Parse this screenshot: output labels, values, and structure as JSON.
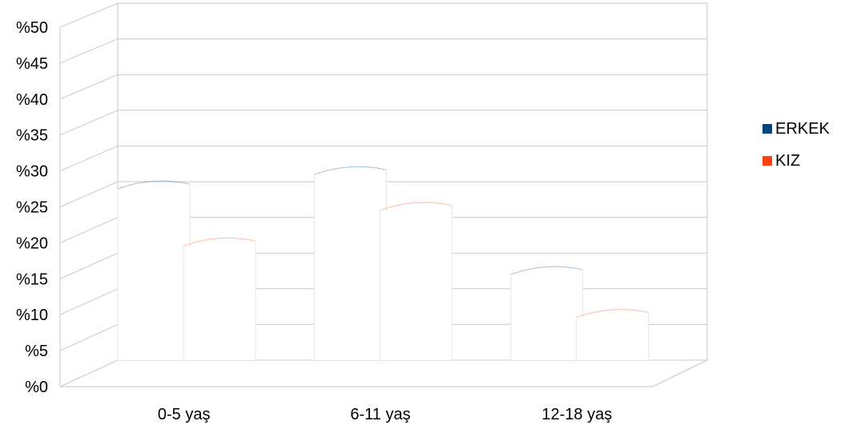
{
  "chart_data": {
    "type": "bar",
    "style": "3d-cylinder",
    "categories": [
      "0-5 yaş",
      "6-11 yaş",
      "12-18 yaş"
    ],
    "series": [
      {
        "name": "ERKEK",
        "color": "#004586",
        "values": [
          24,
          26,
          12
        ]
      },
      {
        "name": "KIZ",
        "color": "#FF420E",
        "values": [
          16,
          21,
          6
        ]
      }
    ],
    "ylim": [
      0,
      50
    ],
    "yticks": [
      "%0",
      "%5",
      "%10",
      "%15",
      "%20",
      "%25",
      "%30",
      "%35",
      "%40",
      "%45",
      "%50"
    ],
    "legend_position": "right",
    "grid": true
  }
}
